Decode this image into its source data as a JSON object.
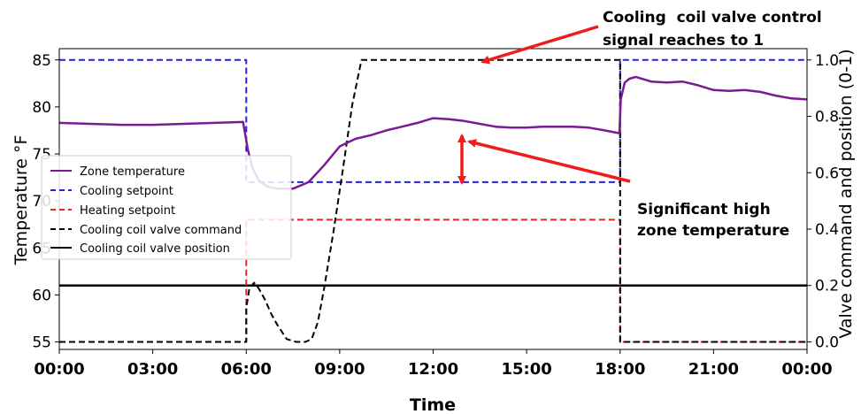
{
  "chart_data": {
    "type": "line",
    "xlabel": "Time",
    "ylabel_left": "Temperature °F",
    "ylabel_right": "Valve command and position (0-1)",
    "x_ticks": [
      "00:00",
      "03:00",
      "06:00",
      "09:00",
      "12:00",
      "15:00",
      "18:00",
      "21:00",
      "00:00"
    ],
    "x_range_hours": [
      0,
      24
    ],
    "y_left_ticks": [
      55,
      60,
      65,
      70,
      75,
      80,
      85
    ],
    "y_left_range": [
      54.2,
      86.2
    ],
    "y_right_ticks": [
      "0.0",
      "0.2",
      "0.4",
      "0.6",
      "0.8",
      "1.0"
    ],
    "y_right_range": [
      -0.0267,
      1.0401
    ],
    "grid": false,
    "legend_position": "center-left",
    "series": [
      {
        "name": "Zone temperature",
        "axis": "left",
        "color": "#7B1A93",
        "style": "solid",
        "x": [
          0,
          1,
          2,
          3,
          4,
          5,
          5.9,
          6.05,
          6.2,
          6.4,
          6.7,
          7.0,
          7.5,
          8.0,
          8.5,
          9.0,
          9.5,
          10.0,
          10.5,
          11.0,
          11.5,
          12.0,
          12.5,
          13.0,
          13.5,
          14.0,
          14.5,
          15.0,
          15.5,
          16.0,
          16.5,
          17.0,
          17.5,
          17.98,
          18.02,
          18.15,
          18.3,
          18.5,
          19.0,
          19.5,
          20.0,
          20.5,
          21.0,
          21.5,
          22.0,
          22.5,
          23.0,
          23.5,
          24.0
        ],
        "y": [
          78.3,
          78.2,
          78.1,
          78.1,
          78.2,
          78.3,
          78.4,
          75.5,
          73.5,
          72.2,
          71.5,
          71.3,
          71.3,
          72.0,
          73.8,
          75.8,
          76.6,
          77.0,
          77.5,
          77.9,
          78.3,
          78.8,
          78.7,
          78.5,
          78.2,
          77.9,
          77.8,
          77.8,
          77.9,
          77.9,
          77.9,
          77.8,
          77.5,
          77.2,
          80.8,
          82.6,
          83.0,
          83.2,
          82.7,
          82.6,
          82.7,
          82.3,
          81.8,
          81.7,
          81.8,
          81.6,
          81.2,
          80.9,
          80.8
        ]
      },
      {
        "name": "Cooling setpoint",
        "axis": "left",
        "color": "#2222DD",
        "style": "dashed",
        "x": [
          0,
          6.0,
          6.0,
          18.0,
          18.0,
          24.0
        ],
        "y": [
          85,
          85,
          72,
          72,
          85,
          85
        ]
      },
      {
        "name": "Heating setpoint",
        "axis": "left",
        "color": "#EE2222",
        "style": "dashed",
        "x": [
          0,
          6.0,
          6.0,
          18.0,
          18.0,
          24.0
        ],
        "y": [
          55,
          55,
          68,
          68,
          55,
          55
        ]
      },
      {
        "name": "Cooling coil valve command",
        "axis": "right",
        "color": "#000000",
        "style": "dashed",
        "x": [
          0,
          6.0,
          6.0,
          6.1,
          6.25,
          6.4,
          6.6,
          6.8,
          7.0,
          7.3,
          7.6,
          7.9,
          8.1,
          8.3,
          8.5,
          8.8,
          9.1,
          9.4,
          9.7,
          10.0,
          18.0,
          18.0,
          24.0
        ],
        "y": [
          0,
          0,
          0.12,
          0.19,
          0.21,
          0.19,
          0.15,
          0.1,
          0.06,
          0.01,
          0,
          0,
          0.01,
          0.07,
          0.19,
          0.39,
          0.61,
          0.84,
          1.0,
          1.0,
          1.0,
          0,
          0
        ]
      },
      {
        "name": "Cooling coil valve position",
        "axis": "right",
        "color": "#000000",
        "style": "solid",
        "x": [
          0,
          24
        ],
        "y": [
          0.2,
          0.2
        ]
      }
    ],
    "annotations": [
      {
        "text_lines": [
          "Cooling  coil valve control",
          "signal reaches to 1"
        ]
      },
      {
        "text_lines": [
          "Significant high",
          "zone temperature"
        ]
      }
    ]
  }
}
